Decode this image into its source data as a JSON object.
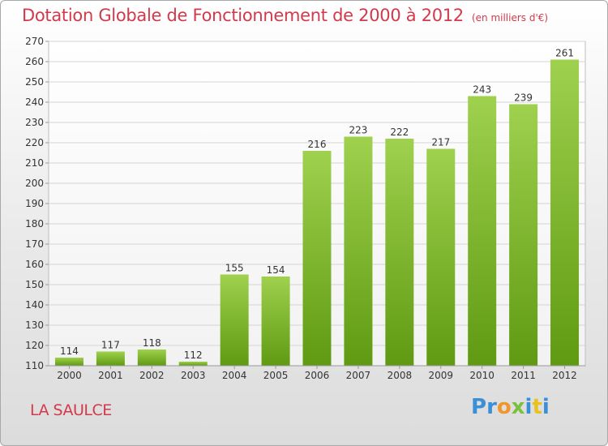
{
  "title": "Dotation Globale de Fonctionnement de 2000 à 2012",
  "unit_note": "(en milliers d'€)",
  "place": "LA SAULCE",
  "logo": {
    "text": "Proxiti",
    "letters": [
      {
        "ch": "P",
        "color": "#3a8fd6"
      },
      {
        "ch": "r",
        "color": "#3a8fd6"
      },
      {
        "ch": "o",
        "color": "#f0962a"
      },
      {
        "ch": "x",
        "color": "#7cc040"
      },
      {
        "ch": "i",
        "color": "#3a8fd6"
      },
      {
        "ch": "t",
        "color": "#e8c21f"
      },
      {
        "ch": "i",
        "color": "#3a8fd6"
      }
    ]
  },
  "colors": {
    "title": "#d23a4c",
    "bar_top": "#9fd14e",
    "bar_bottom": "#5f9a12",
    "grid": "#d4d4d4",
    "axis_text": "#333333"
  },
  "chart_data": {
    "type": "bar",
    "categories": [
      "2000",
      "2001",
      "2002",
      "2003",
      "2004",
      "2005",
      "2006",
      "2007",
      "2008",
      "2009",
      "2010",
      "2011",
      "2012"
    ],
    "values": [
      114,
      117,
      118,
      112,
      155,
      154,
      216,
      223,
      222,
      217,
      243,
      239,
      261
    ],
    "ylim": [
      110,
      270
    ],
    "yticks": [
      110,
      120,
      130,
      140,
      150,
      160,
      170,
      180,
      190,
      200,
      210,
      220,
      230,
      240,
      250,
      260,
      270
    ],
    "grid": true,
    "title": "Dotation Globale de Fonctionnement de 2000 à 2012",
    "ylabel": "(en milliers d'€)",
    "xlabel": "",
    "data_labels": true
  }
}
